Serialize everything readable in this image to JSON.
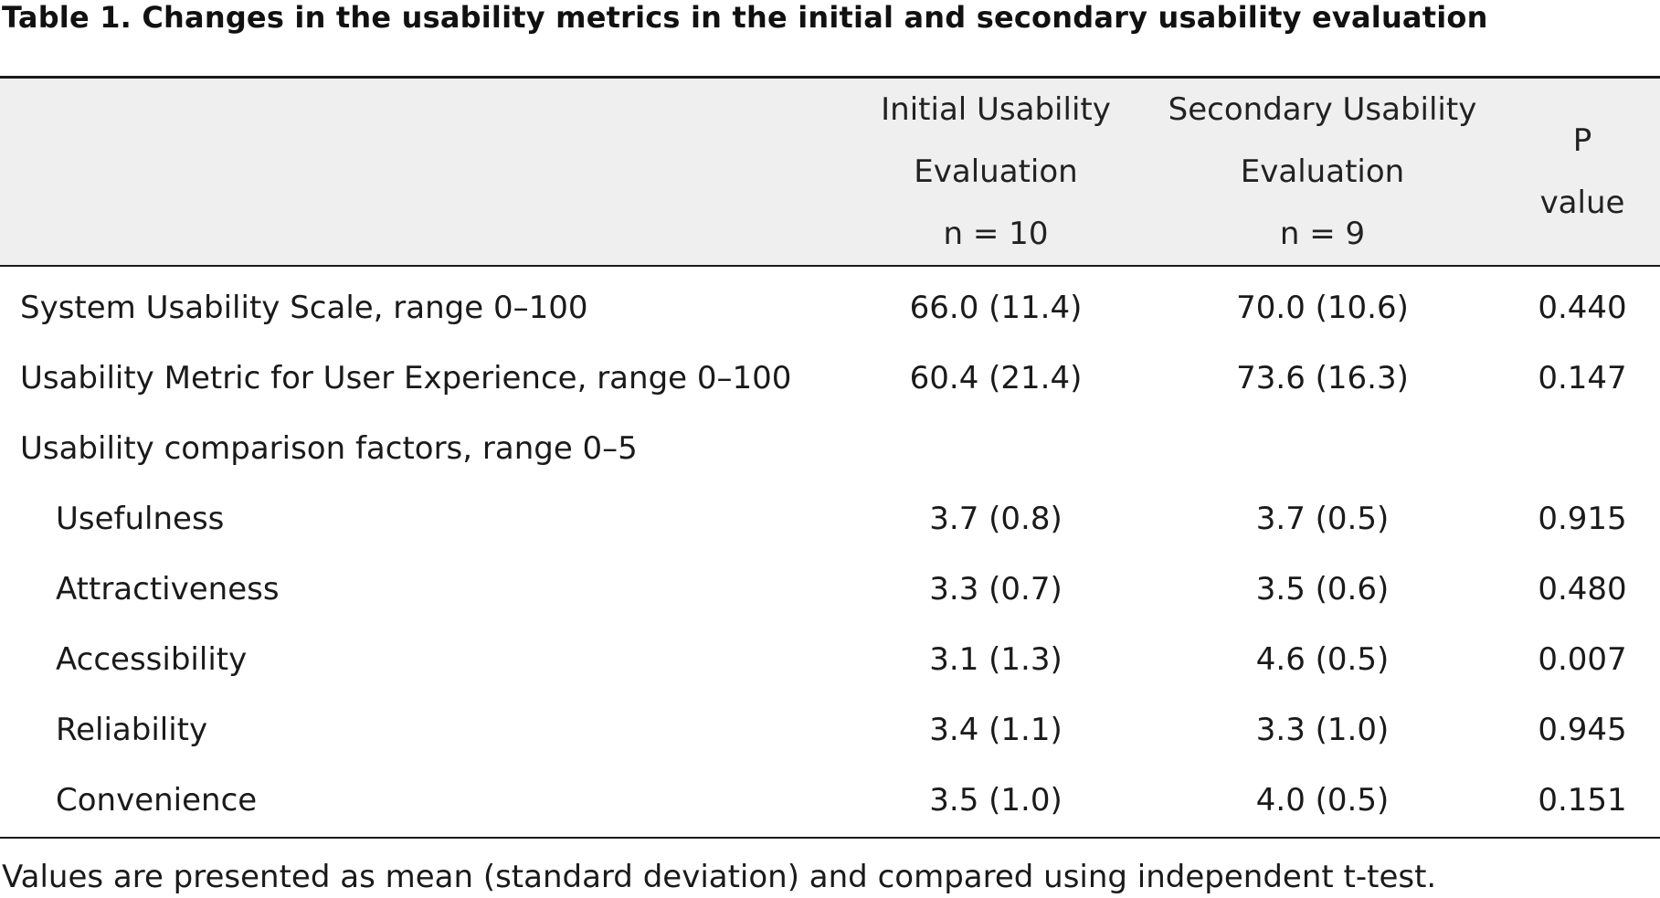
{
  "caption": "Table 1. Changes in the usability metrics in the initial and secondary usability evaluation",
  "header": {
    "col1": "",
    "initial": [
      "Initial Usability",
      "Evaluation",
      "n = 10"
    ],
    "secondary": [
      "Secondary Usability",
      "Evaluation",
      "n = 9"
    ],
    "pvalue": [
      "P",
      "value"
    ]
  },
  "rows": [
    {
      "label": "System Usability Scale, range 0–100",
      "initial": "66.0 (11.4)",
      "secondary": "70.0 (10.6)",
      "p": "0.440"
    },
    {
      "label": "Usability Metric for User Experience, range 0–100",
      "initial": "60.4 (21.4)",
      "secondary": "73.6 (16.3)",
      "p": "0.147"
    },
    {
      "label": "Usability comparison factors, range 0–5",
      "initial": "",
      "secondary": "",
      "p": ""
    },
    {
      "label": "Usefulness",
      "initial": "3.7 (0.8)",
      "secondary": "3.7 (0.5)",
      "p": "0.915"
    },
    {
      "label": "Attractiveness",
      "initial": "3.3 (0.7)",
      "secondary": "3.5 (0.6)",
      "p": "0.480"
    },
    {
      "label": "Accessibility",
      "initial": "3.1 (1.3)",
      "secondary": "4.6 (0.5)",
      "p": "0.007"
    },
    {
      "label": "Reliability",
      "initial": "3.4 (1.1)",
      "secondary": "3.3 (1.0)",
      "p": "0.945"
    },
    {
      "label": "Convenience",
      "initial": "3.5 (1.0)",
      "secondary": "4.0 (0.5)",
      "p": "0.151"
    }
  ],
  "footnote": "Values are presented as mean (standard deviation) and compared using independent t-test."
}
